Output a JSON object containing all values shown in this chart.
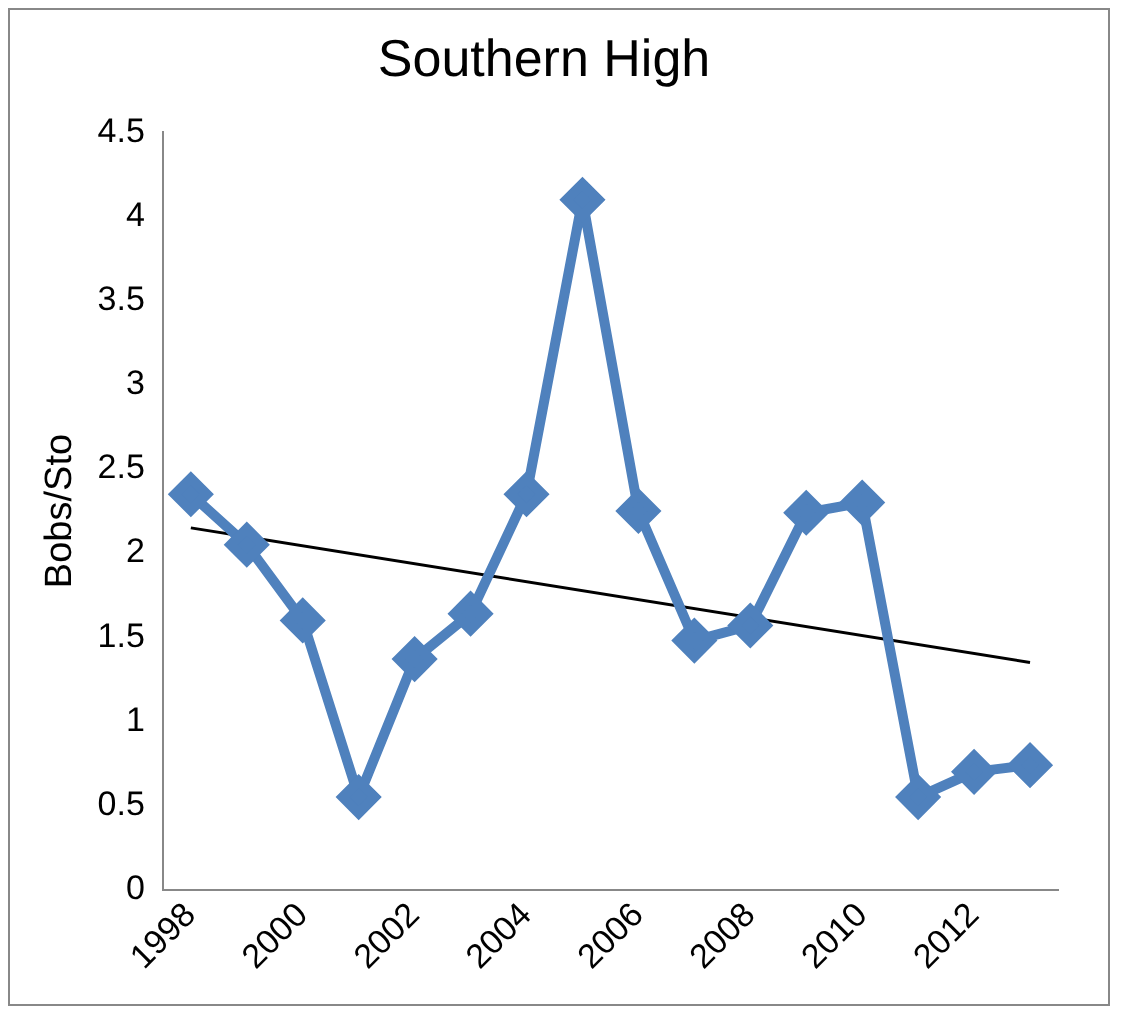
{
  "chart_data": {
    "type": "line",
    "title": "Southern High",
    "ylabel": "Bobs/Sto",
    "categories": [
      "1998",
      null,
      "2000",
      null,
      "2002",
      null,
      "2004",
      null,
      "2006",
      null,
      "2008",
      null,
      "2010",
      null,
      "2012",
      null
    ],
    "series": [
      {
        "color": "#4f81bd",
        "values": [
          2.35,
          2.05,
          1.6,
          0.55,
          1.37,
          1.64,
          2.35,
          4.1,
          2.25,
          1.48,
          1.57,
          2.24,
          2.3,
          0.55,
          0.7,
          0.74
        ],
        "marker": "diamond"
      },
      {
        "type": "line",
        "color": "#000000",
        "marker": "none",
        "values": [
          2.15,
          null,
          null,
          null,
          null,
          null,
          null,
          null,
          null,
          null,
          null,
          null,
          null,
          null,
          null,
          1.35
        ]
      }
    ],
    "ylim": [
      0,
      4.5
    ],
    "yticks": [
      0,
      0.5,
      1,
      1.5,
      2,
      2.5,
      3,
      3.5,
      4,
      4.5
    ],
    "grid": false,
    "legend": false
  }
}
